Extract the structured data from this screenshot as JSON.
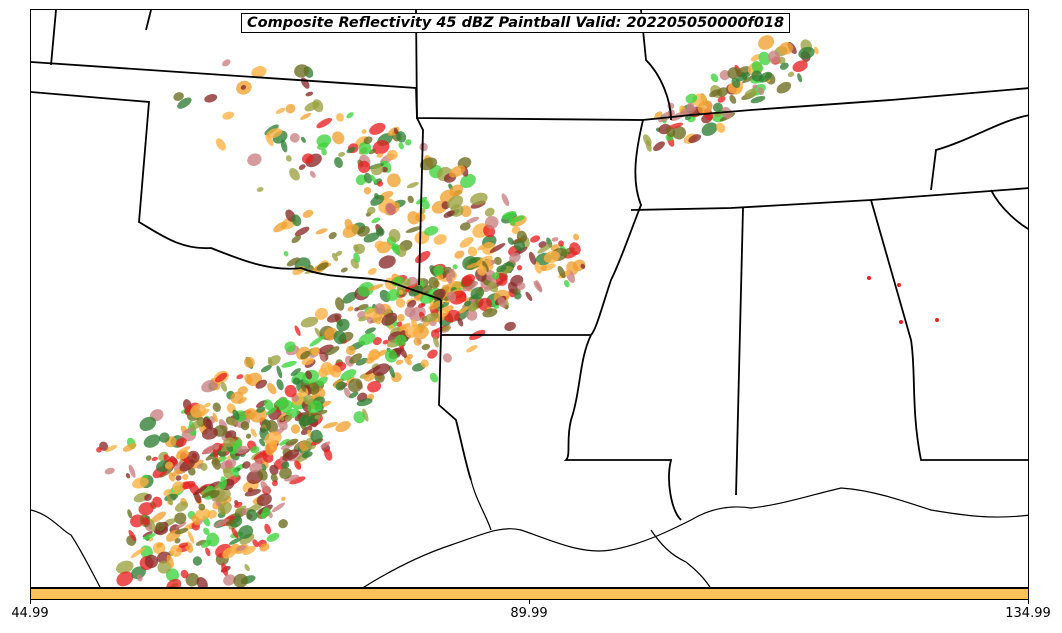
{
  "title": "Composite Reflectivity 45 dBZ Paintball Valid: 202205050000f018",
  "colorbar": {
    "color": "#ffc15a",
    "ticks": [
      "44.99",
      "89.99",
      "134.99"
    ]
  },
  "palette": [
    "#e82020",
    "#f0a030",
    "#ffb040",
    "#3cd43c",
    "#2e7d32",
    "#9aa040",
    "#8b2a2a",
    "#6b6b20",
    "#c88080"
  ],
  "map_features": [
    "state-borders",
    "coastline",
    "paintball-members"
  ]
}
